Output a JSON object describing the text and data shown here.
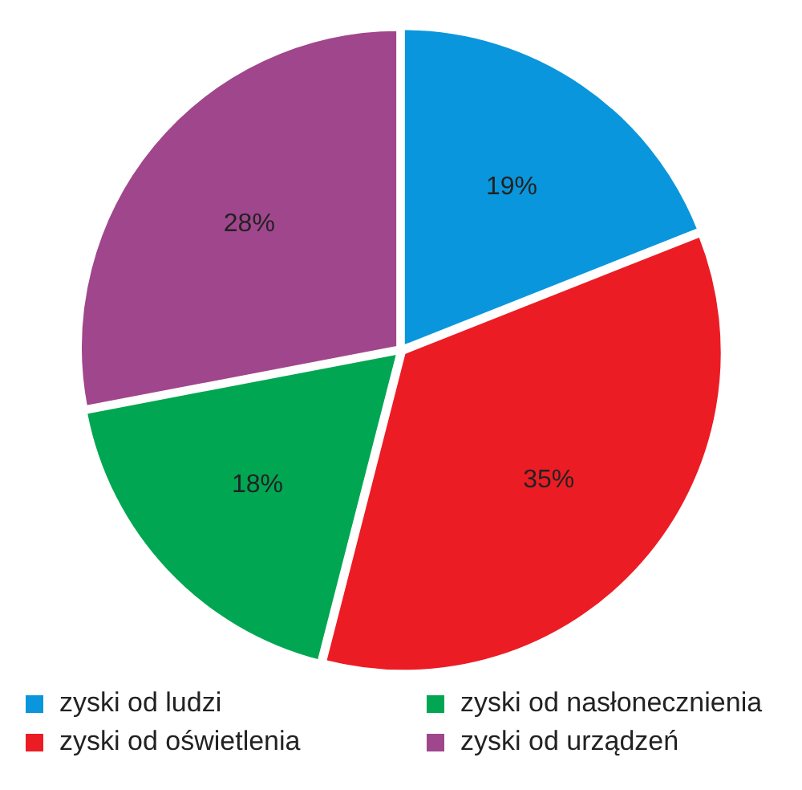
{
  "chart_data": {
    "type": "pie",
    "categories": [
      "zyski od ludzi",
      "zyski od oświetlenia",
      "zyski od nasłonecznienia",
      "zyski od urządzeń"
    ],
    "values": [
      19,
      35,
      18,
      28
    ],
    "colors": [
      "#0a96dc",
      "#ec1c24",
      "#00a651",
      "#a0468c"
    ],
    "value_labels": [
      "19%",
      "35%",
      "18%",
      "28%"
    ],
    "legend": "bottom"
  }
}
